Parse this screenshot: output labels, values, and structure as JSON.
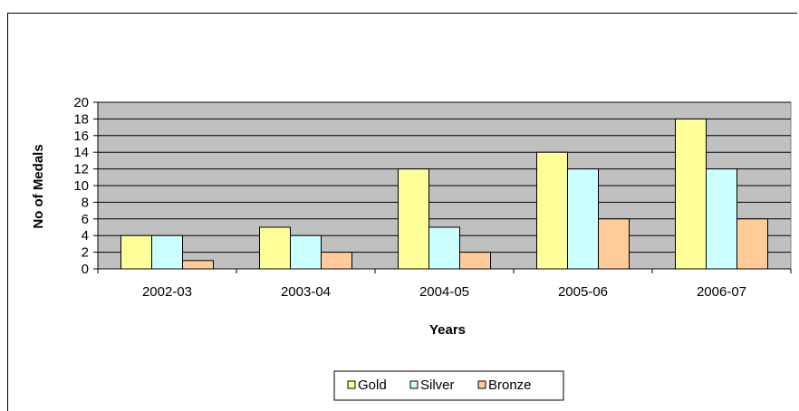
{
  "chart_data": {
    "type": "bar",
    "title": "",
    "xlabel": "Years",
    "ylabel": "No of Medals",
    "ylim": [
      0,
      20
    ],
    "ytick_step": 2,
    "categories": [
      "2002-03",
      "2003-04",
      "2004-05",
      "2005-06",
      "2006-07"
    ],
    "series": [
      {
        "name": "Gold",
        "values": [
          4,
          5,
          12,
          14,
          18
        ],
        "color": "#ffff99"
      },
      {
        "name": "Silver",
        "values": [
          4,
          4,
          5,
          12,
          12
        ],
        "color": "#ccffff"
      },
      {
        "name": "Bronze",
        "values": [
          1,
          2,
          2,
          6,
          6
        ],
        "color": "#ffcc99"
      }
    ],
    "plot_background": "#c0c0c0",
    "grid": true,
    "legend_position": "bottom"
  }
}
